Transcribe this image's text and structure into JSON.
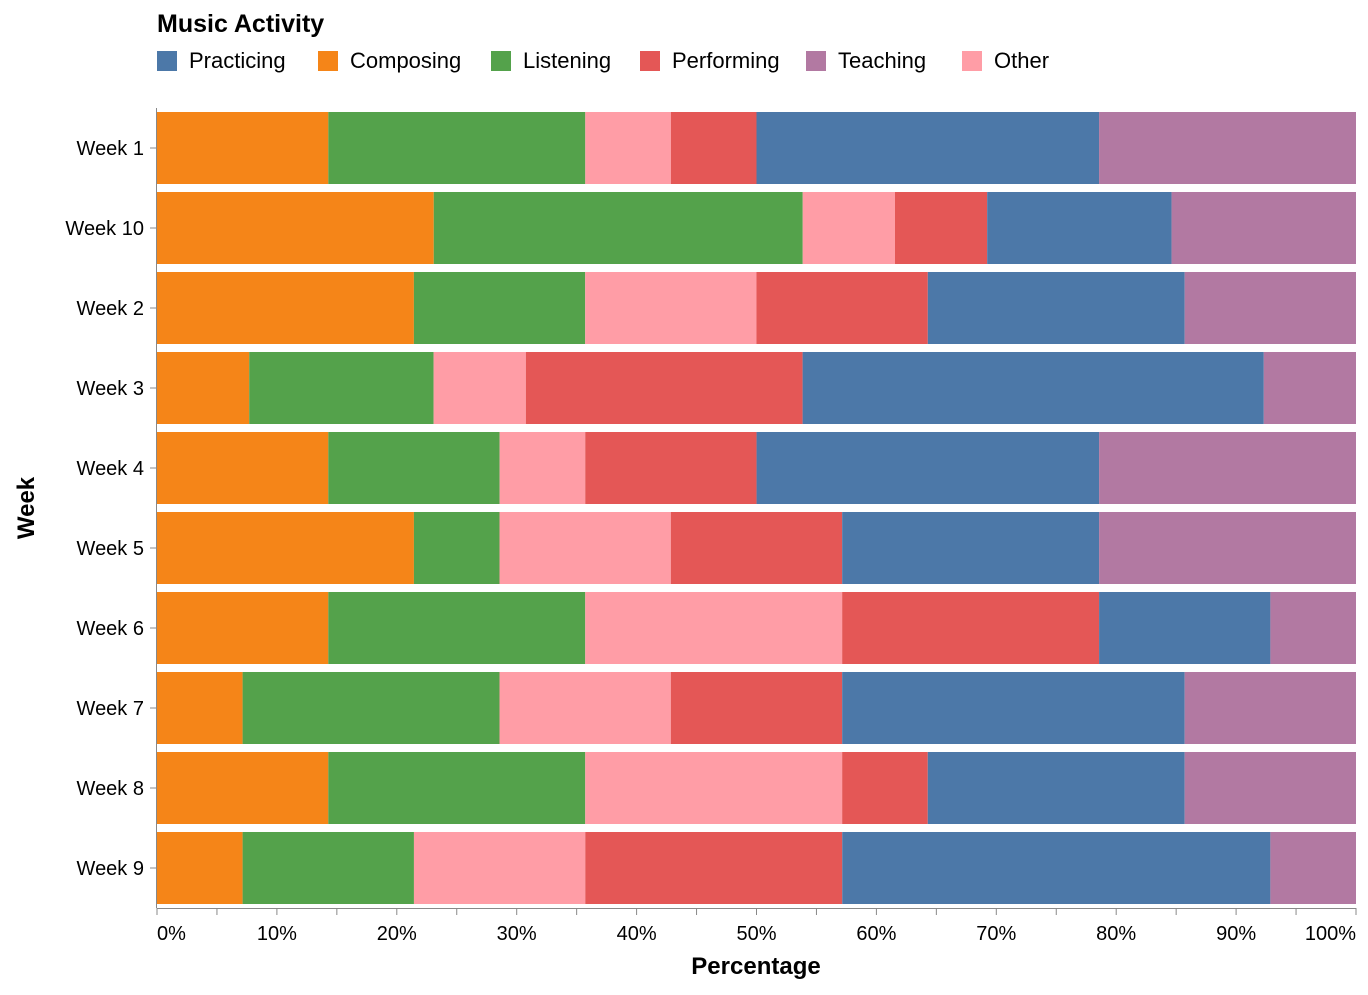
{
  "chart_data": {
    "type": "bar",
    "orientation": "horizontal",
    "stacking": "normalized",
    "legend": {
      "title": "Music Activity",
      "placement": "top-left",
      "order": [
        "Practicing",
        "Composing",
        "Listening",
        "Performing",
        "Teaching",
        "Other"
      ]
    },
    "stack_order": [
      "Composing",
      "Listening",
      "Other",
      "Performing",
      "Practicing",
      "Teaching"
    ],
    "categories": [
      "Week 1",
      "Week 10",
      "Week 2",
      "Week 3",
      "Week 4",
      "Week 5",
      "Week 6",
      "Week 7",
      "Week 8",
      "Week 9"
    ],
    "series": [
      {
        "name": "Practicing",
        "color": "#4c78a8",
        "values": [
          28.57,
          15.38,
          21.43,
          38.46,
          28.57,
          21.43,
          14.29,
          28.57,
          21.43,
          35.71
        ]
      },
      {
        "name": "Composing",
        "color": "#f58518",
        "values": [
          14.29,
          23.08,
          21.43,
          7.69,
          14.29,
          21.43,
          14.29,
          7.14,
          14.29,
          7.14
        ]
      },
      {
        "name": "Listening",
        "color": "#54a24b",
        "values": [
          21.43,
          30.77,
          14.29,
          15.38,
          14.29,
          7.14,
          21.43,
          21.43,
          21.43,
          14.29
        ]
      },
      {
        "name": "Performing",
        "color": "#e45756",
        "values": [
          7.14,
          7.69,
          14.29,
          23.08,
          14.29,
          14.29,
          21.43,
          14.29,
          7.14,
          21.43
        ]
      },
      {
        "name": "Teaching",
        "color": "#b279a2",
        "values": [
          21.43,
          15.38,
          14.29,
          7.69,
          21.43,
          21.43,
          7.14,
          14.29,
          14.29,
          7.14
        ]
      },
      {
        "name": "Other",
        "color": "#ff9da6",
        "values": [
          7.14,
          7.69,
          14.29,
          7.69,
          7.14,
          14.29,
          21.43,
          14.29,
          21.43,
          14.29
        ]
      }
    ],
    "xlabel": "Percentage",
    "ylabel": "Week",
    "xlim": [
      0,
      100
    ],
    "x_ticks": [
      "0%",
      "10%",
      "20%",
      "30%",
      "40%",
      "50%",
      "60%",
      "70%",
      "80%",
      "90%",
      "100%"
    ],
    "grid": false
  }
}
